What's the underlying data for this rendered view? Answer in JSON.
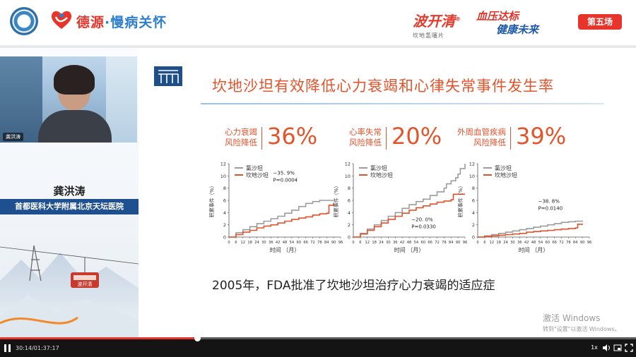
{
  "header": {
    "brand_name_1": "德源",
    "brand_dot": "·",
    "brand_name_2": "慢病关怀",
    "product_name": "波开清",
    "product_reg": "®",
    "product_sub": "坎地氢噻片",
    "slogan_line1": "血压达标",
    "slogan_line2": "健康未来",
    "session_badge": "第五场"
  },
  "speaker": {
    "video_tag": "龚洪涛",
    "name": "龚洪涛",
    "affiliation": "首都医科大学附属北京天坛医院",
    "mountain_sign": "波开清"
  },
  "slide": {
    "title": "坎地沙坦有效降低心力衰竭和心律失常事件发生率",
    "footnote": "2005年，FDA批准了坎地沙坦治疗心力衰竭的适应症"
  },
  "chart_data": [
    {
      "type": "line",
      "title_line1": "心力衰竭",
      "title_line2": "风险降低",
      "headline": "36%",
      "ylabel": "积累事件（%）",
      "xlabel": "时间  （月）",
      "ylim": [
        0,
        12
      ],
      "yticks": [
        "0",
        "2",
        "4",
        "6",
        "8",
        "10",
        "12"
      ],
      "xlim": [
        0,
        96
      ],
      "xticks": [
        "0",
        "6",
        "12",
        "18",
        "24",
        "30",
        "36",
        "42",
        "48",
        "54",
        "60",
        "66",
        "72",
        "78",
        "84",
        "90",
        "96"
      ],
      "legend": [
        "氯沙坦",
        "坎地沙坦"
      ],
      "annotation_line1": "−35. 9%",
      "annotation_line2": "P=0.0004",
      "annotation_at": [
        38,
        10.2
      ],
      "series": [
        {
          "name": "氯沙坦",
          "color": "#9c9c9c",
          "x": [
            0,
            6,
            12,
            18,
            24,
            30,
            36,
            42,
            48,
            54,
            60,
            66,
            72,
            78,
            84,
            90
          ],
          "values": [
            0,
            0.7,
            1.2,
            1.7,
            2.2,
            2.6,
            3.0,
            3.4,
            3.9,
            4.4,
            5.0,
            5.5,
            5.8,
            6.0,
            6.0,
            6.0
          ]
        },
        {
          "name": "坎地沙坦",
          "color": "#e0532a",
          "x": [
            0,
            6,
            12,
            18,
            24,
            30,
            36,
            42,
            48,
            54,
            60,
            66,
            72,
            78,
            84,
            86,
            90
          ],
          "values": [
            0,
            0.4,
            0.8,
            1.1,
            1.5,
            1.8,
            2.0,
            2.3,
            2.6,
            2.9,
            3.1,
            3.3,
            3.6,
            3.8,
            3.9,
            5.2,
            5.6
          ]
        }
      ]
    },
    {
      "type": "line",
      "title_line1": "心率失常",
      "title_line2": "风险降低",
      "headline": "20%",
      "ylabel": "积累事件（%）",
      "xlabel": "时间  （月）",
      "ylim": [
        0,
        12
      ],
      "yticks": [
        "0",
        "2",
        "4",
        "6",
        "8",
        "10",
        "12"
      ],
      "xlim": [
        0,
        96
      ],
      "xticks": [
        "0",
        "6",
        "12",
        "18",
        "24",
        "30",
        "36",
        "42",
        "48",
        "54",
        "60",
        "66",
        "72",
        "78",
        "84",
        "90",
        "96"
      ],
      "legend": [
        "氯沙坦",
        "坎地沙坦"
      ],
      "annotation_line1": "−20. 0%",
      "annotation_line2": "P=0.0330",
      "annotation_at": [
        50,
        2.6
      ],
      "series": [
        {
          "name": "氯沙坦",
          "color": "#9c9c9c",
          "x": [
            0,
            6,
            12,
            18,
            24,
            30,
            36,
            42,
            48,
            54,
            60,
            66,
            72,
            78,
            80,
            84,
            88,
            90,
            92,
            96
          ],
          "values": [
            0,
            0.6,
            1.3,
            2.0,
            2.7,
            3.4,
            4.0,
            4.7,
            5.3,
            5.8,
            6.2,
            6.8,
            7.4,
            8.0,
            8.7,
            9.2,
            9.7,
            10.3,
            11.2,
            12.0
          ]
        },
        {
          "name": "坎地沙坦",
          "color": "#e0532a",
          "x": [
            0,
            6,
            12,
            18,
            24,
            30,
            36,
            42,
            48,
            54,
            60,
            66,
            72,
            78,
            84,
            86,
            90,
            96
          ],
          "values": [
            0,
            0.5,
            1.1,
            1.7,
            2.3,
            2.9,
            3.4,
            3.9,
            4.4,
            4.8,
            5.1,
            5.4,
            5.7,
            5.9,
            6.1,
            7.0,
            7.0,
            7.0
          ]
        }
      ]
    },
    {
      "type": "line",
      "title_line1": "外周血管疾病",
      "title_line2": "风险降低",
      "headline": "39%",
      "ylabel": "积累事件（%）",
      "xlabel": "时间  （月）",
      "ylim": [
        0,
        12
      ],
      "yticks": [
        "0",
        "2",
        "4",
        "6",
        "8",
        "10",
        "12"
      ],
      "xlim": [
        0,
        96
      ],
      "xticks": [
        "0",
        "6",
        "12",
        "18",
        "24",
        "30",
        "36",
        "42",
        "48",
        "54",
        "60",
        "66",
        "72",
        "78",
        "84",
        "90",
        "96"
      ],
      "legend": [
        "氯沙坦",
        "坎地沙坦"
      ],
      "annotation_line1": "−38. 8%",
      "annotation_line2": "P=0.0140",
      "annotation_at": [
        52,
        5.6
      ],
      "series": [
        {
          "name": "氯沙坦",
          "color": "#9c9c9c",
          "x": [
            0,
            6,
            12,
            18,
            24,
            30,
            36,
            42,
            48,
            54,
            60,
            66,
            72,
            78,
            84,
            90
          ],
          "values": [
            0,
            0.2,
            0.4,
            0.6,
            0.8,
            1.0,
            1.2,
            1.4,
            1.6,
            1.8,
            2.0,
            2.2,
            2.4,
            2.5,
            2.6,
            2.7
          ]
        },
        {
          "name": "坎地沙坦",
          "color": "#e0532a",
          "x": [
            0,
            6,
            12,
            18,
            24,
            30,
            36,
            42,
            48,
            54,
            60,
            66,
            72,
            78,
            84,
            86,
            90
          ],
          "values": [
            0,
            0.1,
            0.2,
            0.3,
            0.4,
            0.5,
            0.6,
            0.8,
            0.9,
            1.0,
            1.1,
            1.2,
            1.3,
            1.4,
            1.5,
            2.1,
            2.2
          ]
        }
      ]
    }
  ],
  "watermark": {
    "line1": "激活 Windows",
    "line2": "转到\"设置\"以激活 Windows。"
  },
  "player": {
    "current_time": "30:14",
    "time_sep": "/",
    "total_time": "01:37:17",
    "progress": 0.31,
    "speed": "1x"
  }
}
